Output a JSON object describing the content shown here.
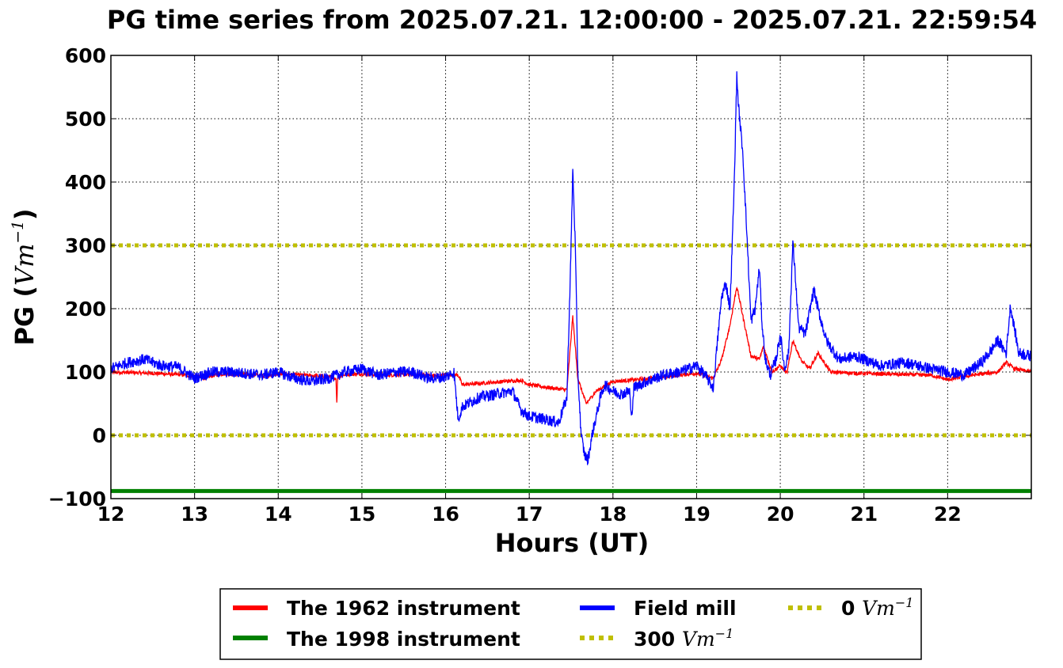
{
  "chart_data": {
    "type": "line",
    "title": "PG time series from 2025.07.21. 12:00:00 - 2025.07.21. 22:59:54",
    "xlabel": "Hours (UT)",
    "ylabel_prefix": "PG (",
    "ylabel_unit": "Vm",
    "ylabel_exp": "−1",
    "ylabel_suffix": ")",
    "xlim": [
      12,
      23
    ],
    "ylim": [
      -100,
      600
    ],
    "xticks": [
      12,
      13,
      14,
      15,
      16,
      17,
      18,
      19,
      20,
      21,
      22
    ],
    "xtick_labels": [
      "12",
      "13",
      "14",
      "15",
      "16",
      "17",
      "18",
      "19",
      "20",
      "21",
      "22"
    ],
    "yticks": [
      -100,
      0,
      100,
      200,
      300,
      400,
      500,
      600
    ],
    "ytick_labels": [
      "−100",
      "0",
      "100",
      "200",
      "300",
      "400",
      "500",
      "600"
    ],
    "grid": true,
    "legend_position": "below",
    "series": [
      {
        "name": "The 1962 instrument",
        "color": "#ff0000",
        "x": [
          12.0,
          12.5,
          12.8,
          13.0,
          13.1,
          13.3,
          13.6,
          13.9,
          14.0,
          14.3,
          14.6,
          14.69,
          14.7,
          14.71,
          14.8,
          15.0,
          15.3,
          15.6,
          15.9,
          16.1,
          16.15,
          16.2,
          16.5,
          16.9,
          17.0,
          17.3,
          17.45,
          17.52,
          17.58,
          17.68,
          17.8,
          18.0,
          18.3,
          18.6,
          19.0,
          19.2,
          19.3,
          19.4,
          19.48,
          19.55,
          19.65,
          19.75,
          19.8,
          19.9,
          20.0,
          20.08,
          20.15,
          20.25,
          20.35,
          20.45,
          20.6,
          20.9,
          21.2,
          21.5,
          21.8,
          22.0,
          22.3,
          22.6,
          22.7,
          22.8,
          23.0
        ],
        "y": [
          100,
          98,
          96,
          94,
          90,
          97,
          96,
          94,
          97,
          95,
          93,
          90,
          50,
          92,
          96,
          97,
          95,
          96,
          94,
          96,
          95,
          80,
          83,
          87,
          80,
          74,
          72,
          188,
          90,
          50,
          70,
          85,
          88,
          92,
          98,
          90,
          120,
          175,
          235,
          190,
          125,
          120,
          140,
          100,
          110,
          98,
          150,
          118,
          105,
          130,
          100,
          98,
          97,
          96,
          95,
          88,
          95,
          100,
          115,
          105,
          100
        ]
      },
      {
        "name": "The 1998 instrument",
        "color": "#008000",
        "x": [
          12,
          23
        ],
        "y": [
          -88,
          -88
        ]
      },
      {
        "name": "Field mill",
        "color": "#0000ff",
        "x": [
          12.0,
          12.2,
          12.4,
          12.6,
          12.8,
          13.0,
          13.2,
          13.4,
          13.6,
          13.8,
          14.0,
          14.2,
          14.4,
          14.6,
          14.8,
          15.0,
          15.2,
          15.4,
          15.6,
          15.8,
          16.0,
          16.1,
          16.15,
          16.2,
          16.4,
          16.6,
          16.8,
          16.9,
          17.0,
          17.2,
          17.35,
          17.45,
          17.5,
          17.52,
          17.55,
          17.58,
          17.62,
          17.66,
          17.7,
          17.75,
          17.8,
          17.85,
          17.9,
          18.0,
          18.1,
          18.2,
          18.22,
          18.25,
          18.4,
          18.6,
          18.8,
          19.0,
          19.1,
          19.2,
          19.25,
          19.3,
          19.35,
          19.4,
          19.45,
          19.48,
          19.5,
          19.55,
          19.6,
          19.65,
          19.7,
          19.75,
          19.78,
          19.82,
          19.88,
          19.95,
          20.0,
          20.05,
          20.1,
          20.15,
          20.18,
          20.22,
          20.3,
          20.4,
          20.45,
          20.55,
          20.7,
          20.9,
          21.2,
          21.5,
          21.8,
          22.0,
          22.2,
          22.4,
          22.5,
          22.6,
          22.7,
          22.75,
          22.85,
          23.0
        ],
        "y": [
          105,
          115,
          120,
          110,
          108,
          90,
          100,
          100,
          98,
          95,
          100,
          90,
          85,
          90,
          100,
          105,
          95,
          100,
          100,
          90,
          92,
          100,
          25,
          45,
          60,
          65,
          70,
          40,
          30,
          25,
          20,
          60,
          300,
          420,
          300,
          100,
          0,
          -30,
          -40,
          0,
          30,
          60,
          80,
          70,
          65,
          70,
          25,
          75,
          85,
          95,
          100,
          110,
          95,
          75,
          150,
          220,
          240,
          200,
          400,
          570,
          520,
          450,
          320,
          180,
          200,
          265,
          180,
          120,
          95,
          120,
          160,
          105,
          130,
          305,
          250,
          170,
          160,
          230,
          200,
          150,
          120,
          125,
          110,
          115,
          105,
          100,
          95,
          115,
          130,
          150,
          130,
          205,
          130,
          125
        ]
      },
      {
        "name": "300 Vm⁻¹",
        "color": "#bfbf00",
        "x": [
          12,
          23
        ],
        "y": [
          300,
          300
        ]
      },
      {
        "name": "0 Vm⁻¹",
        "color": "#bfbf00",
        "x": [
          12,
          23
        ],
        "y": [
          0,
          0
        ]
      }
    ]
  },
  "legend": {
    "items": [
      {
        "label": "The 1962 instrument",
        "color": "#ff0000",
        "style": "solid"
      },
      {
        "label": "The 1998 instrument",
        "color": "#008000",
        "style": "solid"
      },
      {
        "label": "Field mill",
        "color": "#0000ff",
        "style": "solid"
      },
      {
        "label": "300 ",
        "unit": "Vm",
        "exp": "−1",
        "color": "#bfbf00",
        "style": "dotted"
      },
      {
        "label": "0 ",
        "unit": "Vm",
        "exp": "−1",
        "color": "#bfbf00",
        "style": "dotted"
      }
    ]
  }
}
